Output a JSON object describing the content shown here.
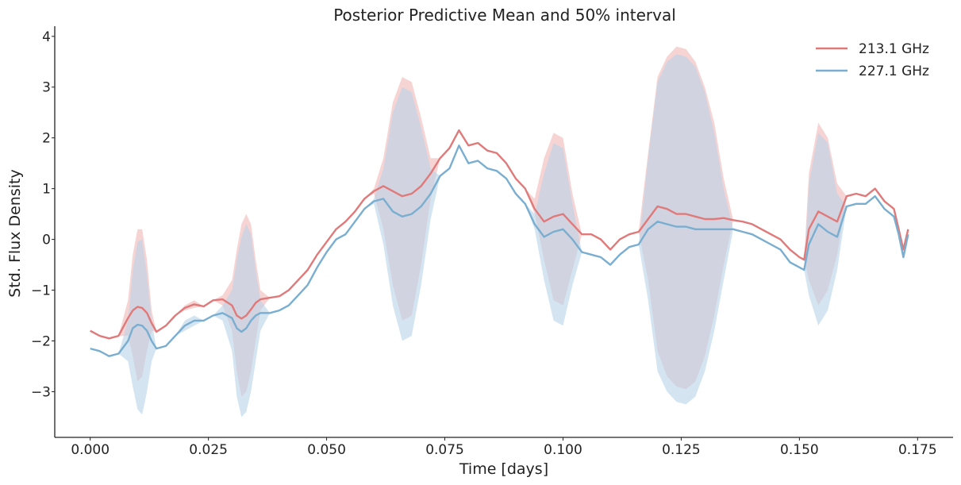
{
  "chart_data": {
    "type": "line",
    "title": "Posterior Predictive Mean and 50% interval",
    "xlabel": "Time [days]",
    "ylabel": "Std. Flux Density",
    "xlim": [
      -0.0075,
      0.1825
    ],
    "ylim": [
      -3.9,
      4.2
    ],
    "xticks": [
      0.0,
      0.025,
      0.05,
      0.075,
      0.1,
      0.125,
      0.15,
      0.175
    ],
    "xtick_labels": [
      "0.000",
      "0.025",
      "0.050",
      "0.075",
      "0.100",
      "0.125",
      "0.150",
      "0.175"
    ],
    "yticks": [
      -3,
      -2,
      -1,
      0,
      1,
      2,
      3,
      4
    ],
    "ytick_labels": [
      "−3",
      "−2",
      "−1",
      "0",
      "1",
      "2",
      "3",
      "4"
    ],
    "grid": false,
    "legend_position": "top-right",
    "series": [
      {
        "name": "213.1 GHz",
        "color": "#e07a7a",
        "fill_color": "#f2b8b8",
        "x": [
          0.0,
          0.002,
          0.004,
          0.006,
          0.008,
          0.009,
          0.01,
          0.011,
          0.012,
          0.013,
          0.014,
          0.016,
          0.018,
          0.02,
          0.022,
          0.024,
          0.026,
          0.028,
          0.03,
          0.031,
          0.032,
          0.033,
          0.034,
          0.035,
          0.036,
          0.038,
          0.04,
          0.042,
          0.044,
          0.046,
          0.048,
          0.05,
          0.052,
          0.054,
          0.056,
          0.058,
          0.06,
          0.062,
          0.064,
          0.066,
          0.068,
          0.07,
          0.072,
          0.074,
          0.076,
          0.078,
          0.08,
          0.082,
          0.084,
          0.086,
          0.088,
          0.09,
          0.092,
          0.094,
          0.096,
          0.098,
          0.1,
          0.102,
          0.104,
          0.106,
          0.108,
          0.11,
          0.112,
          0.114,
          0.116,
          0.118,
          0.12,
          0.122,
          0.124,
          0.126,
          0.128,
          0.13,
          0.132,
          0.134,
          0.136,
          0.138,
          0.14,
          0.142,
          0.144,
          0.146,
          0.148,
          0.15,
          0.151,
          0.152,
          0.154,
          0.156,
          0.158,
          0.16,
          0.162,
          0.164,
          0.166,
          0.168,
          0.17,
          0.171,
          0.172,
          0.173
        ],
        "mean": [
          -1.8,
          -1.9,
          -1.95,
          -1.9,
          -1.55,
          -1.4,
          -1.33,
          -1.35,
          -1.45,
          -1.65,
          -1.82,
          -1.7,
          -1.5,
          -1.35,
          -1.28,
          -1.32,
          -1.2,
          -1.18,
          -1.3,
          -1.5,
          -1.56,
          -1.5,
          -1.38,
          -1.25,
          -1.18,
          -1.15,
          -1.12,
          -1.0,
          -0.8,
          -0.6,
          -0.3,
          -0.05,
          0.2,
          0.35,
          0.55,
          0.8,
          0.95,
          1.05,
          0.95,
          0.85,
          0.9,
          1.05,
          1.3,
          1.6,
          1.8,
          2.15,
          1.85,
          1.9,
          1.75,
          1.7,
          1.5,
          1.2,
          1.0,
          0.6,
          0.35,
          0.45,
          0.5,
          0.3,
          0.1,
          0.1,
          0.0,
          -0.2,
          0.0,
          0.1,
          0.15,
          0.4,
          0.65,
          0.6,
          0.5,
          0.5,
          0.45,
          0.4,
          0.4,
          0.42,
          0.38,
          0.35,
          0.3,
          0.2,
          0.1,
          0.0,
          -0.2,
          -0.35,
          -0.4,
          0.2,
          0.55,
          0.45,
          0.35,
          0.85,
          0.9,
          0.85,
          1.0,
          0.75,
          0.6,
          0.2,
          -0.2,
          0.2
        ],
        "lower": [
          -1.8,
          -1.9,
          -1.95,
          -1.9,
          -1.9,
          -2.3,
          -2.8,
          -2.7,
          -2.2,
          -1.8,
          -1.82,
          -1.7,
          -1.5,
          -1.4,
          -1.35,
          -1.32,
          -1.2,
          -1.3,
          -1.8,
          -2.6,
          -3.1,
          -3.0,
          -2.6,
          -2.0,
          -1.4,
          -1.15,
          -1.12,
          -1.0,
          -0.8,
          -0.6,
          -0.3,
          -0.05,
          0.2,
          0.35,
          0.55,
          0.8,
          0.9,
          0.2,
          -0.9,
          -1.6,
          -1.5,
          -0.5,
          0.8,
          1.6,
          1.8,
          2.15,
          1.85,
          1.9,
          1.75,
          1.7,
          1.5,
          1.2,
          1.0,
          0.5,
          -0.4,
          -1.2,
          -1.3,
          -0.6,
          0.1,
          0.1,
          0.0,
          -0.2,
          0.0,
          0.1,
          0.15,
          -0.8,
          -2.2,
          -2.7,
          -2.9,
          -2.95,
          -2.8,
          -2.3,
          -1.5,
          -0.5,
          0.38,
          0.35,
          0.3,
          0.2,
          0.1,
          0.0,
          -0.2,
          -0.35,
          -0.4,
          -0.8,
          -1.3,
          -1.0,
          -0.3,
          0.85,
          0.9,
          0.85,
          1.0,
          0.75,
          0.6,
          0.2,
          -0.2,
          0.2
        ],
        "upper": [
          -1.8,
          -1.9,
          -1.95,
          -1.9,
          -1.2,
          -0.3,
          0.2,
          0.2,
          -0.4,
          -1.4,
          -1.82,
          -1.7,
          -1.5,
          -1.3,
          -1.2,
          -1.32,
          -1.2,
          -1.1,
          -0.8,
          -0.2,
          0.3,
          0.5,
          0.3,
          -0.4,
          -1.0,
          -1.15,
          -1.12,
          -1.0,
          -0.8,
          -0.6,
          -0.3,
          -0.05,
          0.2,
          0.35,
          0.55,
          0.8,
          1.0,
          1.6,
          2.7,
          3.2,
          3.1,
          2.4,
          1.6,
          1.6,
          1.8,
          2.15,
          1.85,
          1.9,
          1.75,
          1.7,
          1.5,
          1.2,
          1.0,
          0.8,
          1.6,
          2.1,
          2.0,
          0.9,
          0.1,
          0.1,
          0.0,
          -0.2,
          0.0,
          0.1,
          0.15,
          1.7,
          3.2,
          3.6,
          3.8,
          3.75,
          3.5,
          3.0,
          2.3,
          1.2,
          0.38,
          0.35,
          0.3,
          0.2,
          0.1,
          0.0,
          -0.2,
          -0.35,
          -0.4,
          1.3,
          2.3,
          2.0,
          1.1,
          0.85,
          0.9,
          0.85,
          1.0,
          0.75,
          0.6,
          0.2,
          -0.2,
          0.2
        ]
      },
      {
        "name": "227.1 GHz",
        "color": "#7aaed0",
        "fill_color": "#b8d3e8",
        "x": [
          0.0,
          0.002,
          0.004,
          0.006,
          0.008,
          0.009,
          0.01,
          0.011,
          0.012,
          0.013,
          0.014,
          0.016,
          0.018,
          0.02,
          0.022,
          0.024,
          0.026,
          0.028,
          0.03,
          0.031,
          0.032,
          0.033,
          0.034,
          0.035,
          0.036,
          0.038,
          0.04,
          0.042,
          0.044,
          0.046,
          0.048,
          0.05,
          0.052,
          0.054,
          0.056,
          0.058,
          0.06,
          0.062,
          0.064,
          0.066,
          0.068,
          0.07,
          0.072,
          0.074,
          0.076,
          0.078,
          0.08,
          0.082,
          0.084,
          0.086,
          0.088,
          0.09,
          0.092,
          0.094,
          0.096,
          0.098,
          0.1,
          0.102,
          0.104,
          0.106,
          0.108,
          0.11,
          0.112,
          0.114,
          0.116,
          0.118,
          0.12,
          0.122,
          0.124,
          0.126,
          0.128,
          0.13,
          0.132,
          0.134,
          0.136,
          0.138,
          0.14,
          0.142,
          0.144,
          0.146,
          0.148,
          0.15,
          0.151,
          0.152,
          0.154,
          0.156,
          0.158,
          0.16,
          0.162,
          0.164,
          0.166,
          0.168,
          0.17,
          0.171,
          0.172,
          0.173
        ],
        "mean": [
          -2.15,
          -2.2,
          -2.3,
          -2.25,
          -2.0,
          -1.75,
          -1.68,
          -1.7,
          -1.8,
          -2.0,
          -2.15,
          -2.1,
          -1.9,
          -1.7,
          -1.6,
          -1.6,
          -1.5,
          -1.45,
          -1.55,
          -1.75,
          -1.82,
          -1.75,
          -1.6,
          -1.5,
          -1.45,
          -1.45,
          -1.4,
          -1.3,
          -1.1,
          -0.9,
          -0.55,
          -0.25,
          0.0,
          0.1,
          0.35,
          0.6,
          0.75,
          0.8,
          0.55,
          0.45,
          0.5,
          0.65,
          0.9,
          1.25,
          1.4,
          1.85,
          1.5,
          1.55,
          1.4,
          1.35,
          1.2,
          0.9,
          0.7,
          0.3,
          0.05,
          0.15,
          0.2,
          0.0,
          -0.25,
          -0.3,
          -0.35,
          -0.5,
          -0.3,
          -0.15,
          -0.1,
          0.2,
          0.35,
          0.3,
          0.25,
          0.25,
          0.2,
          0.2,
          0.2,
          0.2,
          0.2,
          0.15,
          0.1,
          0.0,
          -0.1,
          -0.2,
          -0.45,
          -0.55,
          -0.6,
          -0.1,
          0.3,
          0.15,
          0.05,
          0.65,
          0.7,
          0.7,
          0.85,
          0.6,
          0.45,
          0.1,
          -0.35,
          0.1
        ],
        "lower": [
          -2.15,
          -2.2,
          -2.3,
          -2.25,
          -2.4,
          -2.9,
          -3.35,
          -3.45,
          -3.0,
          -2.4,
          -2.15,
          -2.1,
          -1.9,
          -1.8,
          -1.7,
          -1.6,
          -1.5,
          -1.6,
          -2.2,
          -3.1,
          -3.5,
          -3.4,
          -3.0,
          -2.4,
          -1.8,
          -1.45,
          -1.4,
          -1.3,
          -1.1,
          -0.9,
          -0.55,
          -0.25,
          0.0,
          0.1,
          0.35,
          0.6,
          0.7,
          -0.1,
          -1.3,
          -2.0,
          -1.9,
          -0.9,
          0.4,
          1.25,
          1.4,
          1.85,
          1.5,
          1.55,
          1.4,
          1.35,
          1.2,
          0.9,
          0.7,
          0.2,
          -0.8,
          -1.6,
          -1.7,
          -0.9,
          -0.25,
          -0.3,
          -0.35,
          -0.5,
          -0.3,
          -0.15,
          -0.1,
          -1.2,
          -2.6,
          -3.0,
          -3.2,
          -3.25,
          -3.1,
          -2.6,
          -1.8,
          -0.8,
          0.2,
          0.15,
          0.1,
          0.0,
          -0.1,
          -0.2,
          -0.45,
          -0.55,
          -0.6,
          -1.1,
          -1.7,
          -1.4,
          -0.6,
          0.65,
          0.7,
          0.7,
          0.85,
          0.6,
          0.45,
          0.1,
          -0.35,
          0.1
        ],
        "upper": [
          -2.15,
          -2.2,
          -2.3,
          -2.25,
          -1.6,
          -0.6,
          -0.05,
          0.0,
          -0.7,
          -1.6,
          -2.15,
          -2.1,
          -1.9,
          -1.6,
          -1.5,
          -1.6,
          -1.5,
          -1.3,
          -1.0,
          -0.4,
          0.05,
          0.3,
          0.1,
          -0.6,
          -1.2,
          -1.45,
          -1.4,
          -1.3,
          -1.1,
          -0.9,
          -0.55,
          -0.25,
          0.0,
          0.1,
          0.35,
          0.6,
          0.8,
          1.4,
          2.5,
          3.0,
          2.9,
          2.2,
          1.4,
          1.25,
          1.4,
          1.85,
          1.5,
          1.55,
          1.4,
          1.35,
          1.2,
          0.9,
          0.7,
          0.5,
          1.3,
          1.9,
          1.8,
          0.7,
          -0.25,
          -0.3,
          -0.35,
          -0.5,
          -0.3,
          -0.15,
          -0.1,
          1.6,
          3.1,
          3.5,
          3.65,
          3.6,
          3.4,
          2.9,
          2.1,
          1.0,
          0.2,
          0.15,
          0.1,
          0.0,
          -0.1,
          -0.2,
          -0.45,
          -0.55,
          -0.6,
          1.1,
          2.1,
          1.9,
          0.9,
          0.65,
          0.7,
          0.7,
          0.85,
          0.6,
          0.45,
          0.1,
          -0.35,
          0.1
        ]
      }
    ]
  }
}
